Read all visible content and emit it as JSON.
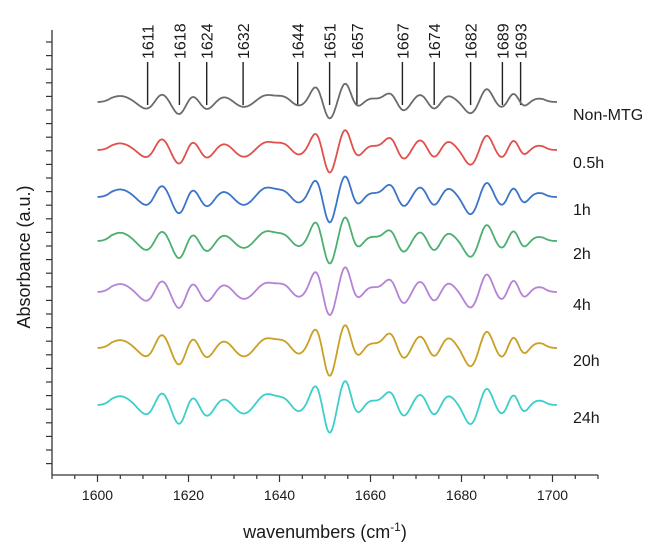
{
  "chart_data": {
    "type": "line",
    "title": "",
    "xlabel": "wavenumbers (cm",
    "xlabel_sup": "-1",
    "xlabel_suffix": ")",
    "ylabel": "Absorbance (a.u.)",
    "xlim": [
      1590,
      1710
    ],
    "x_ticks": [
      1600,
      1620,
      1640,
      1660,
      1680,
      1700
    ],
    "x_tick_labels": [
      "1600",
      "1620",
      "1640",
      "1660",
      "1680",
      "1700"
    ],
    "y_ticks_labeled": false,
    "grid": false,
    "legend": "labels at right end of each trace",
    "peak_positions": [
      1611,
      1618,
      1624,
      1632,
      1644,
      1651,
      1657,
      1667,
      1674,
      1682,
      1689,
      1693
    ],
    "peak_labels": [
      "1611",
      "1618",
      "1624",
      "1632",
      "1644",
      "1651",
      "1657",
      "1667",
      "1674",
      "1682",
      "1689",
      "1693"
    ],
    "series": [
      {
        "name": "Non-MTG",
        "color": "#6b6b6b"
      },
      {
        "name": "0.5h",
        "color": "#e0514c"
      },
      {
        "name": "1h",
        "color": "#3b74c9"
      },
      {
        "name": "2h",
        "color": "#4caf72"
      },
      {
        "name": "4h",
        "color": "#b483d6"
      },
      {
        "name": "20h",
        "color": "#c9a024"
      },
      {
        "name": "24h",
        "color": "#3ccfc9"
      }
    ]
  }
}
